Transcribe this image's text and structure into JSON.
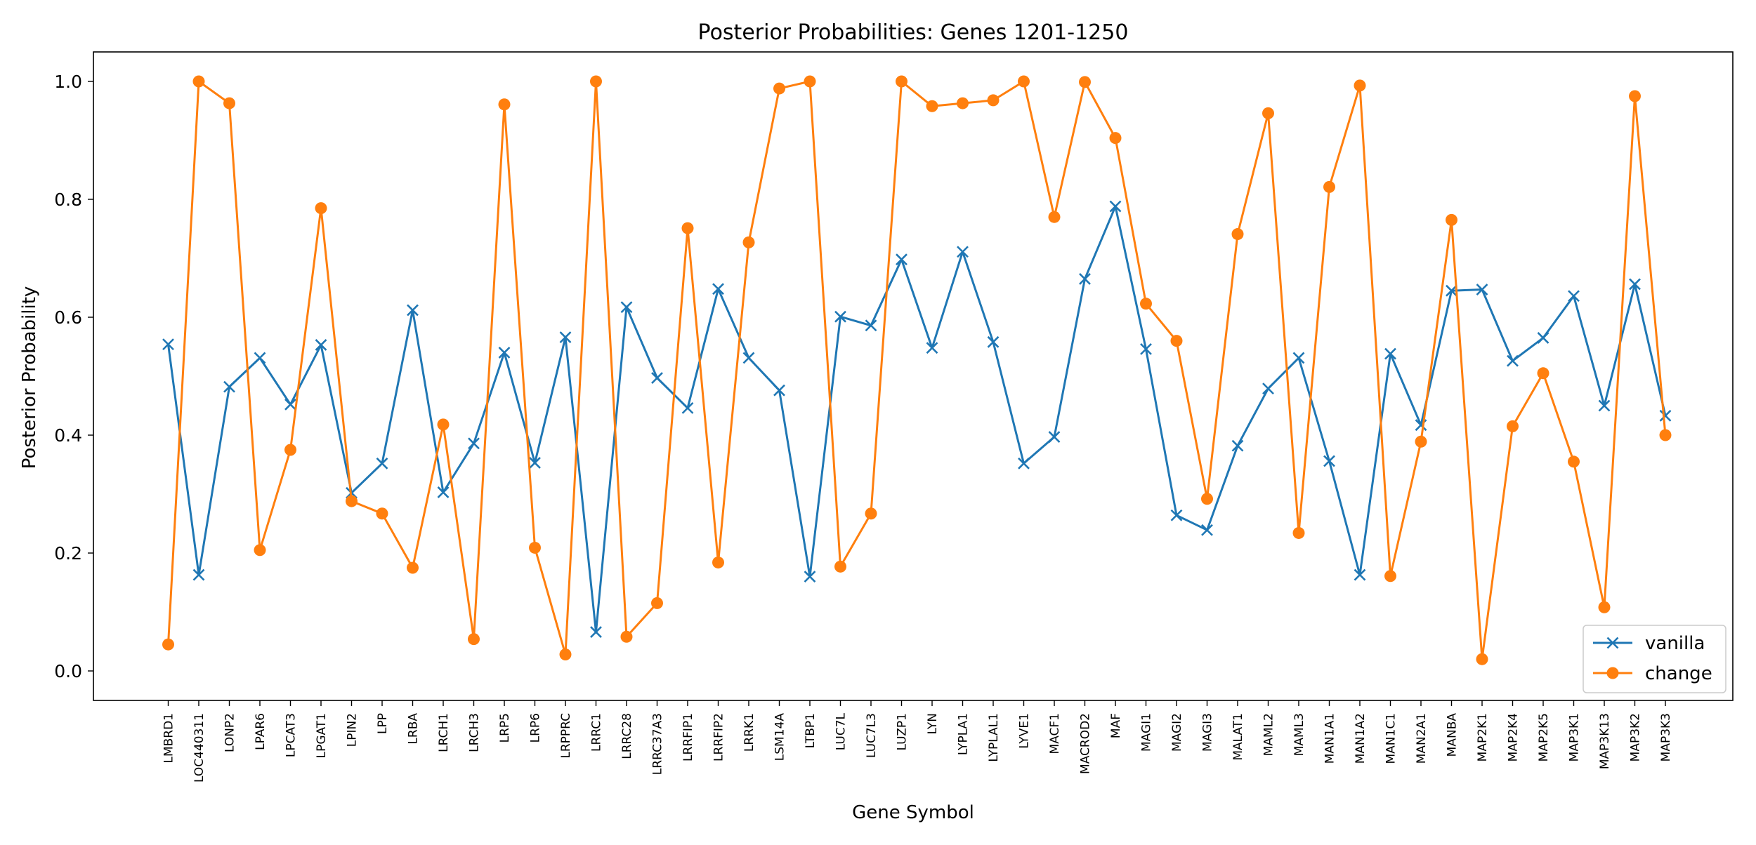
{
  "chart_data": {
    "type": "line",
    "title": "Posterior Probabilities: Genes 1201-1250",
    "xlabel": "Gene Symbol",
    "ylabel": "Posterior Probability",
    "ylim": [
      -0.05,
      1.05
    ],
    "yticks": [
      0.0,
      0.2,
      0.4,
      0.6,
      0.8,
      1.0
    ],
    "ytick_labels": [
      "0.0",
      "0.2",
      "0.4",
      "0.6",
      "0.8",
      "1.0"
    ],
    "grid": false,
    "legend_position": "bottom-right",
    "categories": [
      "LMBRD1",
      "LOC440311",
      "LONP2",
      "LPAR6",
      "LPCAT3",
      "LPGAT1",
      "LPIN2",
      "LPP",
      "LRBA",
      "LRCH1",
      "LRCH3",
      "LRP5",
      "LRP6",
      "LRPPRC",
      "LRRC1",
      "LRRC28",
      "LRRC37A3",
      "LRRFIP1",
      "LRRFIP2",
      "LRRK1",
      "LSM14A",
      "LTBP1",
      "LUC7L",
      "LUC7L3",
      "LUZP1",
      "LYN",
      "LYPLA1",
      "LYPLAL1",
      "LYVE1",
      "MACF1",
      "MACROD2",
      "MAF",
      "MAGI1",
      "MAGI2",
      "MAGI3",
      "MALAT1",
      "MAML2",
      "MAML3",
      "MAN1A1",
      "MAN1A2",
      "MAN1C1",
      "MAN2A1",
      "MANBA",
      "MAP2K1",
      "MAP2K4",
      "MAP2K5",
      "MAP3K1",
      "MAP3K13",
      "MAP3K2",
      "MAP3K3"
    ],
    "series": [
      {
        "name": "vanilla",
        "color": "#1f77b4",
        "marker": "x",
        "values": [
          0.554,
          0.163,
          0.482,
          0.531,
          0.452,
          0.553,
          0.302,
          0.352,
          0.612,
          0.303,
          0.386,
          0.54,
          0.353,
          0.566,
          0.066,
          0.617,
          0.497,
          0.446,
          0.648,
          0.531,
          0.476,
          0.16,
          0.601,
          0.586,
          0.698,
          0.548,
          0.711,
          0.558,
          0.352,
          0.397,
          0.665,
          0.788,
          0.546,
          0.264,
          0.239,
          0.382,
          0.479,
          0.531,
          0.356,
          0.163,
          0.538,
          0.417,
          0.645,
          0.647,
          0.526,
          0.565,
          0.636,
          0.45,
          0.656,
          0.433
        ]
      },
      {
        "name": "change",
        "color": "#ff7f0e",
        "marker": "o",
        "values": [
          0.045,
          1.0,
          0.963,
          0.205,
          0.375,
          0.785,
          0.288,
          0.267,
          0.175,
          0.418,
          0.054,
          0.961,
          0.209,
          0.028,
          1.0,
          0.058,
          0.115,
          0.751,
          0.184,
          0.727,
          0.988,
          1.0,
          0.177,
          0.267,
          1.0,
          0.958,
          0.963,
          0.968,
          1.0,
          0.77,
          0.999,
          0.904,
          0.623,
          0.56,
          0.292,
          0.741,
          0.946,
          0.234,
          0.821,
          0.993,
          0.161,
          0.389,
          0.765,
          0.02,
          0.415,
          0.505,
          0.355,
          0.108,
          0.975,
          0.4
        ]
      }
    ]
  }
}
